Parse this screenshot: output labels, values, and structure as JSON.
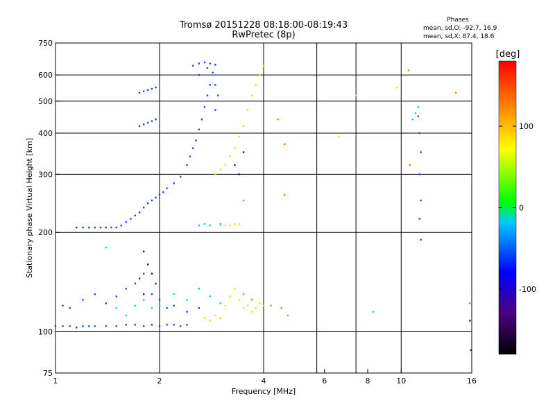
{
  "chart_data": {
    "type": "scatter",
    "title": "Tromsø 20151228 08:18:00-08:19:43",
    "subtitle": "RwPretec (8p)",
    "xlabel": "Frequency [MHz]",
    "ylabel": "Stationary phase Virtual Height [km]",
    "x_scale": "log",
    "y_scale": "log",
    "xlim": [
      1,
      16
    ],
    "ylim": [
      75,
      750
    ],
    "x_ticks": [
      1,
      2,
      4,
      6,
      8,
      10,
      16
    ],
    "x_tick_labels": [
      "1",
      "2",
      "4",
      "6",
      "8",
      "10",
      "16"
    ],
    "x_gridlines": [
      2,
      4,
      5.7,
      7.4,
      10
    ],
    "y_ticks": [
      75,
      100,
      200,
      300,
      400,
      500,
      600,
      750
    ],
    "y_tick_labels": [
      "75",
      "100",
      "200",
      "300",
      "400",
      "500",
      "600",
      "750"
    ],
    "y_gridlines": [
      100,
      200,
      300,
      400,
      500,
      600
    ],
    "grid": true,
    "annotation": {
      "title": "Phases",
      "line1": "mean, sd,O: -92.7, 16.9",
      "line2": "mean, sd,X:  87.4, 18.6"
    },
    "colorbar": {
      "label": "[deg]",
      "ticks": [
        100,
        0,
        -100
      ],
      "tick_labels": [
        "100",
        "0",
        "-100"
      ],
      "range": [
        -180,
        180
      ],
      "colors": [
        "#000000",
        "#4b0082",
        "#0000ff",
        "#00c8ff",
        "#00ff00",
        "#ffff00",
        "#ff8000",
        "#ff0000"
      ]
    },
    "series": [
      {
        "color": "#1e3cff",
        "values": [
          [
            1.0,
            104
          ],
          [
            1.05,
            104
          ],
          [
            1.1,
            104
          ],
          [
            1.15,
            103
          ],
          [
            1.2,
            104
          ],
          [
            1.25,
            104
          ],
          [
            1.3,
            104
          ],
          [
            1.4,
            104
          ],
          [
            1.5,
            104
          ],
          [
            1.6,
            105
          ],
          [
            1.7,
            105
          ],
          [
            1.8,
            104
          ],
          [
            1.9,
            105
          ],
          [
            2.0,
            104
          ],
          [
            2.1,
            105
          ],
          [
            2.2,
            105
          ],
          [
            2.3,
            104
          ],
          [
            2.4,
            105
          ],
          [
            1.15,
            207
          ],
          [
            1.2,
            207
          ],
          [
            1.25,
            207
          ],
          [
            1.3,
            207
          ],
          [
            1.35,
            207
          ],
          [
            1.4,
            207
          ],
          [
            1.45,
            207
          ],
          [
            1.5,
            207
          ],
          [
            1.55,
            210
          ],
          [
            1.6,
            215
          ],
          [
            1.65,
            220
          ],
          [
            1.7,
            225
          ],
          [
            1.75,
            230
          ],
          [
            1.8,
            238
          ],
          [
            1.85,
            245
          ],
          [
            1.9,
            250
          ],
          [
            1.95,
            255
          ],
          [
            2.0,
            260
          ],
          [
            2.05,
            265
          ],
          [
            2.1,
            272
          ],
          [
            2.2,
            282
          ],
          [
            2.3,
            295
          ],
          [
            2.4,
            320
          ],
          [
            2.45,
            340
          ],
          [
            2.5,
            360
          ],
          [
            2.55,
            380
          ],
          [
            2.6,
            410
          ],
          [
            2.65,
            440
          ],
          [
            2.7,
            480
          ],
          [
            2.75,
            520
          ],
          [
            2.8,
            560
          ],
          [
            1.75,
            420
          ],
          [
            1.8,
            425
          ],
          [
            1.85,
            430
          ],
          [
            1.9,
            435
          ],
          [
            1.95,
            440
          ],
          [
            1.75,
            530
          ],
          [
            1.8,
            535
          ],
          [
            1.85,
            540
          ],
          [
            1.9,
            545
          ],
          [
            1.95,
            550
          ],
          [
            2.5,
            640
          ],
          [
            2.6,
            650
          ],
          [
            2.7,
            655
          ],
          [
            2.8,
            650
          ],
          [
            2.9,
            645
          ],
          [
            2.6,
            600
          ],
          [
            2.75,
            630
          ],
          [
            2.85,
            610
          ],
          [
            2.9,
            560
          ],
          [
            2.95,
            520
          ],
          [
            2.9,
            470
          ],
          [
            1.05,
            120
          ],
          [
            1.1,
            118
          ],
          [
            1.2,
            125
          ],
          [
            1.3,
            130
          ],
          [
            1.4,
            122
          ],
          [
            1.5,
            128
          ],
          [
            1.6,
            135
          ],
          [
            1.7,
            140
          ],
          [
            1.8,
            150
          ],
          [
            1.9,
            130
          ],
          [
            2.0,
            125
          ],
          [
            2.1,
            118
          ],
          [
            2.2,
            120
          ],
          [
            2.4,
            115
          ],
          [
            2.6,
            118
          ],
          [
            11.2,
            450
          ],
          [
            11.3,
            400
          ],
          [
            11.4,
            350
          ],
          [
            11.3,
            300
          ],
          [
            11.4,
            250
          ],
          [
            11.3,
            220
          ],
          [
            11.4,
            190
          ]
        ]
      },
      {
        "color": "#00c8e6",
        "values": [
          [
            1.4,
            180
          ],
          [
            1.5,
            118
          ],
          [
            1.6,
            112
          ],
          [
            1.7,
            120
          ],
          [
            1.8,
            125
          ],
          [
            1.9,
            118
          ],
          [
            2.0,
            120
          ],
          [
            2.2,
            130
          ],
          [
            2.4,
            125
          ],
          [
            2.6,
            135
          ],
          [
            2.8,
            128
          ],
          [
            3.0,
            122
          ],
          [
            2.6,
            210
          ],
          [
            2.7,
            212
          ],
          [
            2.8,
            210
          ],
          [
            3.0,
            212
          ],
          [
            10.8,
            440
          ],
          [
            11.0,
            460
          ],
          [
            11.2,
            480
          ],
          [
            8.3,
            115
          ]
        ]
      },
      {
        "color": "#e6e600",
        "values": [
          [
            2.7,
            110
          ],
          [
            2.8,
            108
          ],
          [
            2.9,
            112
          ],
          [
            3.0,
            110
          ],
          [
            3.1,
            120
          ],
          [
            3.2,
            128
          ],
          [
            3.3,
            135
          ],
          [
            3.4,
            125
          ],
          [
            3.5,
            118
          ],
          [
            3.6,
            120
          ],
          [
            3.7,
            115
          ],
          [
            3.8,
            118
          ],
          [
            3.9,
            122
          ],
          [
            4.0,
            120
          ],
          [
            2.9,
            300
          ],
          [
            3.0,
            310
          ],
          [
            3.1,
            320
          ],
          [
            3.2,
            340
          ],
          [
            3.3,
            360
          ],
          [
            3.4,
            390
          ],
          [
            3.5,
            420
          ],
          [
            3.6,
            470
          ],
          [
            3.7,
            520
          ],
          [
            3.8,
            560
          ],
          [
            3.9,
            600
          ],
          [
            4.0,
            640
          ],
          [
            3.0,
            210
          ],
          [
            3.1,
            210
          ],
          [
            3.2,
            210
          ],
          [
            3.3,
            212
          ],
          [
            3.4,
            212
          ],
          [
            6.6,
            390
          ],
          [
            7.4,
            520
          ],
          [
            9.7,
            550
          ]
        ]
      },
      {
        "color": "#ff7800",
        "values": [
          [
            3.5,
            130
          ],
          [
            3.7,
            125
          ],
          [
            4.2,
            120
          ],
          [
            4.5,
            118
          ],
          [
            4.7,
            112
          ],
          [
            4.6,
            260
          ],
          [
            4.6,
            370
          ],
          [
            4.4,
            440
          ],
          [
            3.5,
            250
          ],
          [
            10.5,
            620
          ],
          [
            14.4,
            530
          ],
          [
            15.8,
            122
          ],
          [
            10.6,
            320
          ]
        ]
      },
      {
        "color": "#4b0082",
        "values": [
          [
            1.8,
            175
          ],
          [
            1.85,
            160
          ],
          [
            1.9,
            150
          ],
          [
            1.75,
            145
          ],
          [
            1.95,
            140
          ],
          [
            1.8,
            130
          ],
          [
            3.3,
            320
          ],
          [
            3.4,
            300
          ],
          [
            3.5,
            350
          ],
          [
            15.8,
            108
          ],
          [
            15.9,
            88
          ]
        ]
      }
    ]
  }
}
